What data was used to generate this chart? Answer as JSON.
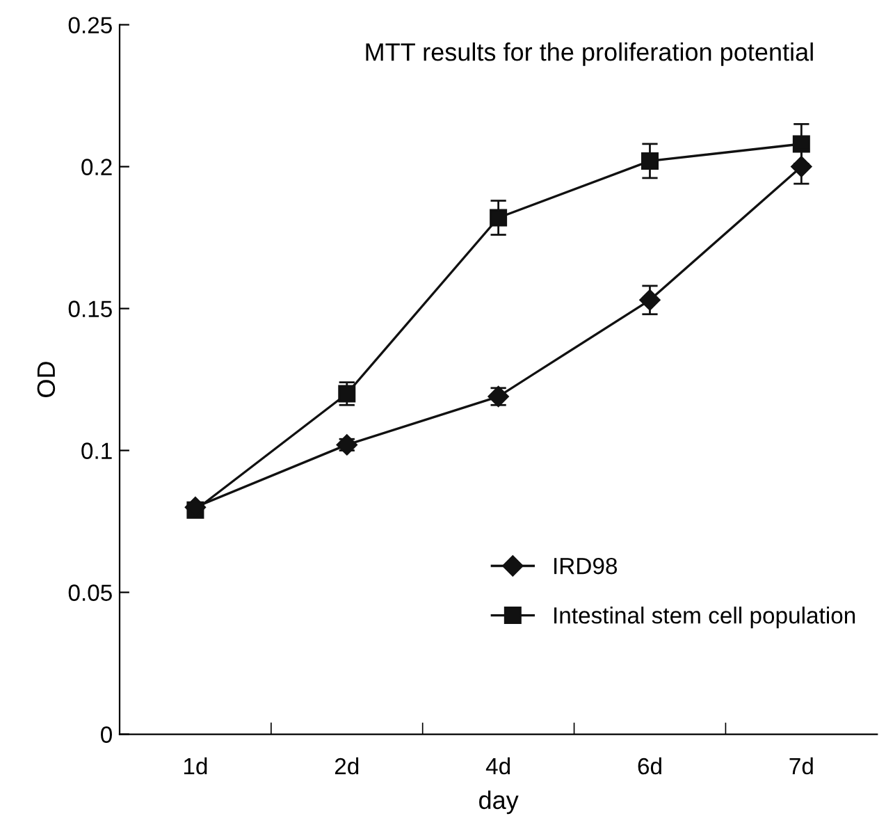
{
  "chart_data": {
    "type": "line",
    "title": "MTT results for the proliferation potential",
    "xlabel": "day",
    "ylabel": "OD",
    "categories": [
      "1d",
      "2d",
      "4d",
      "6d",
      "7d"
    ],
    "series": [
      {
        "name": "IRD98",
        "color": "#111111",
        "marker": "diamond",
        "values": [
          0.08,
          0.102,
          0.119,
          0.153,
          0.2
        ],
        "errors": [
          null,
          0.002,
          0.003,
          0.005,
          0.006
        ]
      },
      {
        "name": "Intestinal stem cell population",
        "color": "#111111",
        "marker": "square",
        "values": [
          0.079,
          0.12,
          0.182,
          0.202,
          0.208
        ],
        "errors": [
          0.002,
          0.004,
          0.006,
          0.006,
          0.007
        ]
      }
    ],
    "ylim": [
      0,
      0.25
    ],
    "yticks": [
      0,
      0.05,
      0.1,
      0.15,
      0.2,
      0.25
    ],
    "legend": "bottom right",
    "grid": false,
    "line_style": "solid"
  }
}
